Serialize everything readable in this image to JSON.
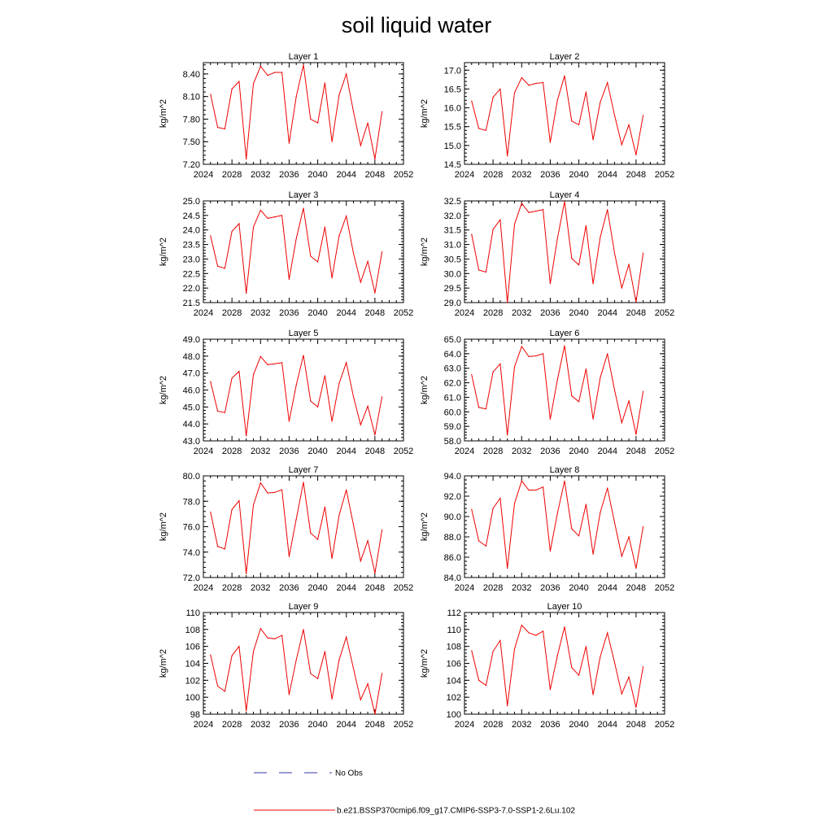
{
  "title": "soil liquid water",
  "legend": {
    "entries": [
      {
        "label": "No Obs",
        "color": "#3333aa",
        "style": "dashed"
      },
      {
        "label": "b.e21.BSSP370cmip6.f09_g17.CMIP6-SSP3-7.0-SSP1-2.6Lu.102",
        "color": "#ee0000",
        "style": "solid"
      }
    ]
  },
  "chart_data": [
    {
      "type": "line",
      "title": "Layer 1",
      "ylabel": "kg/m^2",
      "xlim": [
        2024,
        2052
      ],
      "xticks": [
        2024,
        2028,
        2032,
        2036,
        2040,
        2044,
        2048,
        2052
      ],
      "ylim": [
        7.2,
        8.55
      ],
      "yticks": [
        "7.20",
        "7.50",
        "7.80",
        "8.10",
        "8.40"
      ],
      "x": [
        2025,
        2026,
        2027,
        2028,
        2029,
        2030,
        2031,
        2032,
        2033,
        2034,
        2035,
        2036,
        2037,
        2038,
        2039,
        2040,
        2041,
        2042,
        2043,
        2044,
        2045,
        2046,
        2047,
        2048,
        2049
      ],
      "series": [
        {
          "color": "#ee0000",
          "values": [
            8.13,
            7.69,
            7.67,
            8.2,
            8.3,
            7.27,
            8.27,
            8.5,
            8.38,
            8.42,
            8.42,
            7.48,
            8.1,
            8.52,
            7.8,
            7.75,
            8.28,
            7.5,
            8.12,
            8.4,
            7.9,
            7.45,
            7.75,
            7.27,
            7.9
          ]
        }
      ]
    },
    {
      "type": "line",
      "title": "Layer 2",
      "ylabel": "kg/m^2",
      "xlim": [
        2024,
        2052
      ],
      "xticks": [
        2024,
        2028,
        2032,
        2036,
        2040,
        2044,
        2048,
        2052
      ],
      "ylim": [
        14.5,
        17.2
      ],
      "yticks": [
        "14.5",
        "15.0",
        "15.5",
        "16.0",
        "16.5",
        "17.0"
      ],
      "x": [
        2025,
        2026,
        2027,
        2028,
        2029,
        2030,
        2031,
        2032,
        2033,
        2034,
        2035,
        2036,
        2037,
        2038,
        2039,
        2040,
        2041,
        2042,
        2043,
        2044,
        2045,
        2046,
        2047,
        2048,
        2049
      ],
      "series": [
        {
          "color": "#ee0000",
          "values": [
            16.18,
            15.45,
            15.4,
            16.28,
            16.5,
            14.72,
            16.4,
            16.8,
            16.6,
            16.65,
            16.67,
            15.08,
            16.2,
            16.85,
            15.65,
            15.55,
            16.42,
            15.15,
            16.15,
            16.67,
            15.8,
            15.02,
            15.55,
            14.75,
            15.8
          ]
        }
      ]
    },
    {
      "type": "line",
      "title": "Layer 3",
      "ylabel": "kg/m^2",
      "xlim": [
        2024,
        2052
      ],
      "xticks": [
        2024,
        2028,
        2032,
        2036,
        2040,
        2044,
        2048,
        2052
      ],
      "ylim": [
        21.5,
        25.0
      ],
      "yticks": [
        "21.5",
        "22.0",
        "22.5",
        "23.0",
        "23.5",
        "24.0",
        "24.5",
        "25.0"
      ],
      "x": [
        2025,
        2026,
        2027,
        2028,
        2029,
        2030,
        2031,
        2032,
        2033,
        2034,
        2035,
        2036,
        2037,
        2038,
        2039,
        2040,
        2041,
        2042,
        2043,
        2044,
        2045,
        2046,
        2047,
        2048,
        2049
      ],
      "series": [
        {
          "color": "#ee0000",
          "values": [
            23.8,
            22.75,
            22.68,
            23.95,
            24.22,
            21.82,
            24.1,
            24.68,
            24.4,
            24.45,
            24.5,
            22.3,
            23.7,
            24.75,
            23.1,
            22.9,
            24.1,
            22.35,
            23.8,
            24.48,
            23.2,
            22.2,
            22.92,
            21.83,
            23.25
          ]
        }
      ]
    },
    {
      "type": "line",
      "title": "Layer 4",
      "ylabel": "kg/m^2",
      "xlim": [
        2024,
        2052
      ],
      "xticks": [
        2024,
        2028,
        2032,
        2036,
        2040,
        2044,
        2048,
        2052
      ],
      "ylim": [
        29.0,
        32.5
      ],
      "yticks": [
        "29.0",
        "29.5",
        "30.0",
        "30.5",
        "31.0",
        "31.5",
        "32.0",
        "32.5"
      ],
      "x": [
        2025,
        2026,
        2027,
        2028,
        2029,
        2030,
        2031,
        2032,
        2033,
        2034,
        2035,
        2036,
        2037,
        2038,
        2039,
        2040,
        2041,
        2042,
        2043,
        2044,
        2045,
        2046,
        2047,
        2048,
        2049
      ],
      "series": [
        {
          "color": "#ee0000",
          "values": [
            31.35,
            30.12,
            30.05,
            31.52,
            31.85,
            29.0,
            31.7,
            32.42,
            32.1,
            32.15,
            32.2,
            29.65,
            31.2,
            32.48,
            30.52,
            30.3,
            31.65,
            29.65,
            31.25,
            32.2,
            30.7,
            29.5,
            30.32,
            29.02,
            30.7
          ]
        }
      ]
    },
    {
      "type": "line",
      "title": "Layer 5",
      "ylabel": "kg/m^2",
      "xlim": [
        2024,
        2052
      ],
      "xticks": [
        2024,
        2028,
        2032,
        2036,
        2040,
        2044,
        2048,
        2052
      ],
      "ylim": [
        43.0,
        49.0
      ],
      "yticks": [
        "43.0",
        "44.0",
        "45.0",
        "46.0",
        "47.0",
        "48.0",
        "49.0"
      ],
      "x": [
        2025,
        2026,
        2027,
        2028,
        2029,
        2030,
        2031,
        2032,
        2033,
        2034,
        2035,
        2036,
        2037,
        2038,
        2039,
        2040,
        2041,
        2042,
        2043,
        2044,
        2045,
        2046,
        2047,
        2048,
        2049
      ],
      "series": [
        {
          "color": "#ee0000",
          "values": [
            46.5,
            44.75,
            44.67,
            46.7,
            47.1,
            43.3,
            46.9,
            47.98,
            47.5,
            47.55,
            47.62,
            44.15,
            46.3,
            48.05,
            45.35,
            45.0,
            46.85,
            44.15,
            46.4,
            47.62,
            45.6,
            43.95,
            45.05,
            43.35,
            45.6
          ]
        }
      ]
    },
    {
      "type": "line",
      "title": "Layer 6",
      "ylabel": "kg/m^2",
      "xlim": [
        2024,
        2052
      ],
      "xticks": [
        2024,
        2028,
        2032,
        2036,
        2040,
        2044,
        2048,
        2052
      ],
      "ylim": [
        58.0,
        65.0
      ],
      "yticks": [
        "58.0",
        "59.0",
        "60.0",
        "61.0",
        "62.0",
        "63.0",
        "64.0",
        "65.0"
      ],
      "x": [
        2025,
        2026,
        2027,
        2028,
        2029,
        2030,
        2031,
        2032,
        2033,
        2034,
        2035,
        2036,
        2037,
        2038,
        2039,
        2040,
        2041,
        2042,
        2043,
        2044,
        2045,
        2046,
        2047,
        2048,
        2049
      ],
      "series": [
        {
          "color": "#ee0000",
          "values": [
            62.55,
            60.3,
            60.2,
            62.75,
            63.3,
            58.4,
            63.1,
            64.5,
            63.8,
            63.85,
            64.0,
            59.5,
            62.2,
            64.55,
            61.1,
            60.7,
            62.95,
            59.5,
            62.35,
            64.0,
            61.5,
            59.25,
            60.75,
            58.45,
            61.4
          ]
        }
      ]
    },
    {
      "type": "line",
      "title": "Layer 7",
      "ylabel": "kg/m^2",
      "xlim": [
        2024,
        2052
      ],
      "xticks": [
        2024,
        2028,
        2032,
        2036,
        2040,
        2044,
        2048,
        2052
      ],
      "ylim": [
        72.0,
        80.0
      ],
      "yticks": [
        "72.0",
        "74.0",
        "76.0",
        "78.0",
        "80.0"
      ],
      "x": [
        2025,
        2026,
        2027,
        2028,
        2029,
        2030,
        2031,
        2032,
        2033,
        2034,
        2035,
        2036,
        2037,
        2038,
        2039,
        2040,
        2041,
        2042,
        2043,
        2044,
        2045,
        2046,
        2047,
        2048,
        2049
      ],
      "series": [
        {
          "color": "#ee0000",
          "values": [
            77.15,
            74.45,
            74.25,
            77.35,
            78.05,
            72.3,
            77.7,
            79.45,
            78.65,
            78.7,
            78.9,
            73.65,
            76.6,
            79.5,
            75.5,
            75.0,
            77.55,
            73.5,
            76.9,
            78.9,
            76.15,
            73.3,
            74.9,
            72.35,
            75.75
          ]
        }
      ]
    },
    {
      "type": "line",
      "title": "Layer 8",
      "ylabel": "kg/m^2",
      "xlim": [
        2024,
        2052
      ],
      "xticks": [
        2024,
        2028,
        2032,
        2036,
        2040,
        2044,
        2048,
        2052
      ],
      "ylim": [
        84.0,
        94.0
      ],
      "yticks": [
        "84.0",
        "86.0",
        "88.0",
        "90.0",
        "92.0",
        "94.0"
      ],
      "x": [
        2025,
        2026,
        2027,
        2028,
        2029,
        2030,
        2031,
        2032,
        2033,
        2034,
        2035,
        2036,
        2037,
        2038,
        2039,
        2040,
        2041,
        2042,
        2043,
        2044,
        2045,
        2046,
        2047,
        2048,
        2049
      ],
      "series": [
        {
          "color": "#ee0000",
          "values": [
            90.7,
            87.6,
            87.1,
            90.8,
            91.8,
            84.9,
            91.3,
            93.5,
            92.6,
            92.6,
            92.9,
            86.6,
            90.3,
            93.5,
            88.8,
            88.1,
            91.2,
            86.3,
            90.4,
            92.8,
            89.4,
            86.1,
            88.0,
            84.9,
            89.0
          ]
        }
      ]
    },
    {
      "type": "line",
      "title": "Layer 9",
      "ylabel": "kg/m^2",
      "xlim": [
        2024,
        2052
      ],
      "xticks": [
        2024,
        2028,
        2032,
        2036,
        2040,
        2044,
        2048,
        2052
      ],
      "ylim": [
        98,
        110
      ],
      "yticks": [
        "98",
        "100",
        "102",
        "104",
        "106",
        "108",
        "110"
      ],
      "x": [
        2025,
        2026,
        2027,
        2028,
        2029,
        2030,
        2031,
        2032,
        2033,
        2034,
        2035,
        2036,
        2037,
        2038,
        2039,
        2040,
        2041,
        2042,
        2043,
        2044,
        2045,
        2046,
        2047,
        2048,
        2049
      ],
      "series": [
        {
          "color": "#ee0000",
          "values": [
            105.0,
            101.3,
            100.7,
            104.9,
            106.0,
            98.4,
            105.4,
            108.1,
            107.0,
            106.9,
            107.3,
            100.3,
            104.4,
            108.0,
            102.8,
            102.2,
            105.4,
            99.8,
            104.4,
            107.1,
            103.4,
            99.7,
            101.6,
            98.0,
            102.8
          ]
        }
      ]
    },
    {
      "type": "line",
      "title": "Layer 10",
      "ylabel": "kg/m^2",
      "xlim": [
        2024,
        2052
      ],
      "xticks": [
        2024,
        2028,
        2032,
        2036,
        2040,
        2044,
        2048,
        2052
      ],
      "ylim": [
        100,
        112
      ],
      "yticks": [
        "100",
        "102",
        "104",
        "106",
        "108",
        "110",
        "112"
      ],
      "x": [
        2025,
        2026,
        2027,
        2028,
        2029,
        2030,
        2031,
        2032,
        2033,
        2034,
        2035,
        2036,
        2037,
        2038,
        2039,
        2040,
        2041,
        2042,
        2043,
        2044,
        2045,
        2046,
        2047,
        2048,
        2049
      ],
      "series": [
        {
          "color": "#ee0000",
          "values": [
            107.5,
            104.0,
            103.4,
            107.4,
            108.7,
            101.0,
            107.7,
            110.5,
            109.6,
            109.3,
            109.8,
            102.9,
            106.9,
            110.3,
            105.5,
            104.6,
            108.0,
            102.3,
            106.8,
            109.6,
            106.1,
            102.4,
            104.4,
            100.8,
            105.6
          ]
        }
      ]
    }
  ]
}
